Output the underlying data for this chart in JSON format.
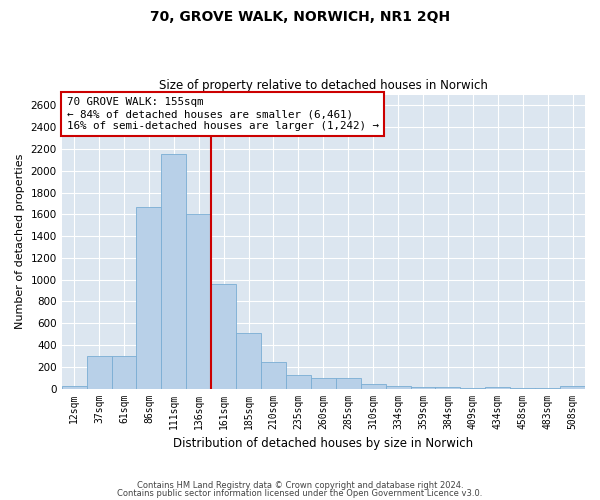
{
  "title1": "70, GROVE WALK, NORWICH, NR1 2QH",
  "title2": "Size of property relative to detached houses in Norwich",
  "xlabel": "Distribution of detached houses by size in Norwich",
  "ylabel": "Number of detached properties",
  "bar_color": "#b8d0e8",
  "bar_edge_color": "#7aadd4",
  "categories": [
    "12sqm",
    "37sqm",
    "61sqm",
    "86sqm",
    "111sqm",
    "136sqm",
    "161sqm",
    "185sqm",
    "210sqm",
    "235sqm",
    "260sqm",
    "285sqm",
    "310sqm",
    "334sqm",
    "359sqm",
    "384sqm",
    "409sqm",
    "434sqm",
    "458sqm",
    "483sqm",
    "508sqm"
  ],
  "values": [
    20,
    300,
    300,
    1670,
    2150,
    1600,
    960,
    510,
    245,
    120,
    100,
    100,
    45,
    20,
    15,
    10,
    5,
    15,
    5,
    5,
    20
  ],
  "vline_x_index": 6,
  "vline_color": "#cc0000",
  "annotation_text": "70 GROVE WALK: 155sqm\n← 84% of detached houses are smaller (6,461)\n16% of semi-detached houses are larger (1,242) →",
  "annotation_box_color": "#ffffff",
  "annotation_box_edge": "#cc0000",
  "ylim": [
    0,
    2700
  ],
  "yticks": [
    0,
    200,
    400,
    600,
    800,
    1000,
    1200,
    1400,
    1600,
    1800,
    2000,
    2200,
    2400,
    2600
  ],
  "footer1": "Contains HM Land Registry data © Crown copyright and database right 2024.",
  "footer2": "Contains public sector information licensed under the Open Government Licence v3.0.",
  "fig_facecolor": "#ffffff",
  "plot_bg_color": "#dce6f0"
}
